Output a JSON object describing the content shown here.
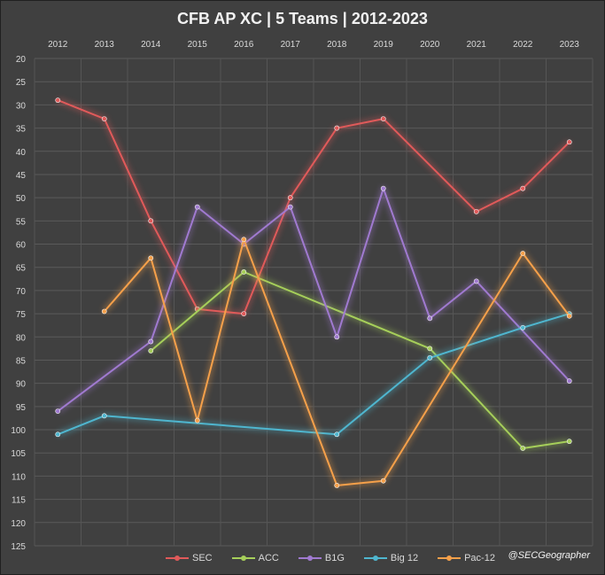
{
  "chart_data": {
    "type": "line",
    "title": "CFB AP XC | 5 Teams | 2012-2023",
    "x": [
      "2012",
      "2013",
      "2014",
      "2015",
      "2016",
      "2017",
      "2018",
      "2019",
      "2020",
      "2021",
      "2022",
      "2023"
    ],
    "ylim": [
      20,
      125
    ],
    "y_inverted": true,
    "y_ticks": [
      20,
      25,
      30,
      35,
      40,
      45,
      50,
      55,
      60,
      65,
      70,
      75,
      80,
      85,
      90,
      95,
      100,
      105,
      110,
      115,
      120,
      125
    ],
    "x_axis_position": "top",
    "grid": true,
    "legend_position": "bottom",
    "series": [
      {
        "name": "SEC",
        "color": "#e05a5a",
        "values": [
          29,
          33,
          55,
          74,
          75,
          50,
          35,
          33,
          null,
          53,
          48,
          38
        ]
      },
      {
        "name": "ACC",
        "color": "#a6cf5a",
        "values": [
          null,
          null,
          83,
          null,
          66,
          null,
          null,
          null,
          82.5,
          null,
          104,
          102.5
        ]
      },
      {
        "name": "B1G",
        "color": "#a07ad0",
        "values": [
          96,
          null,
          81,
          52,
          60,
          52,
          80,
          48,
          76,
          68,
          null,
          89.5
        ]
      },
      {
        "name": "Big 12",
        "color": "#4fb6cf",
        "values": [
          101,
          97,
          null,
          null,
          null,
          null,
          101,
          null,
          84.5,
          null,
          78,
          75
        ]
      },
      {
        "name": "Pac-12",
        "color": "#f5a04a",
        "values": [
          null,
          74.5,
          63,
          98,
          59,
          null,
          112,
          111,
          null,
          null,
          62,
          75.5
        ]
      }
    ]
  },
  "credit": "@SECGeographer"
}
